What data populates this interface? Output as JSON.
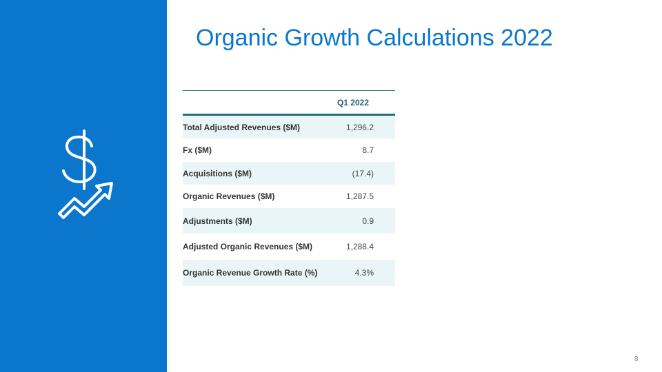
{
  "title": "Organic Growth Calculations 2022",
  "table": {
    "header": [
      "",
      "Q1 2022"
    ],
    "rows": [
      [
        "Total Adjusted Revenues ($M)",
        "1,296.2"
      ],
      [
        "Fx ($M)",
        "8.7"
      ],
      [
        "Acquisitions ($M)",
        "(17.4)"
      ],
      [
        "Organic Revenues ($M)",
        "1,287.5"
      ],
      [
        "Adjustments ($M)",
        "0.9"
      ],
      [
        "Adjusted Organic Revenues ($M)",
        "1,288.4"
      ],
      [
        "Organic Revenue Growth Rate (%)",
        "4.3%"
      ]
    ]
  },
  "page_number": "8"
}
